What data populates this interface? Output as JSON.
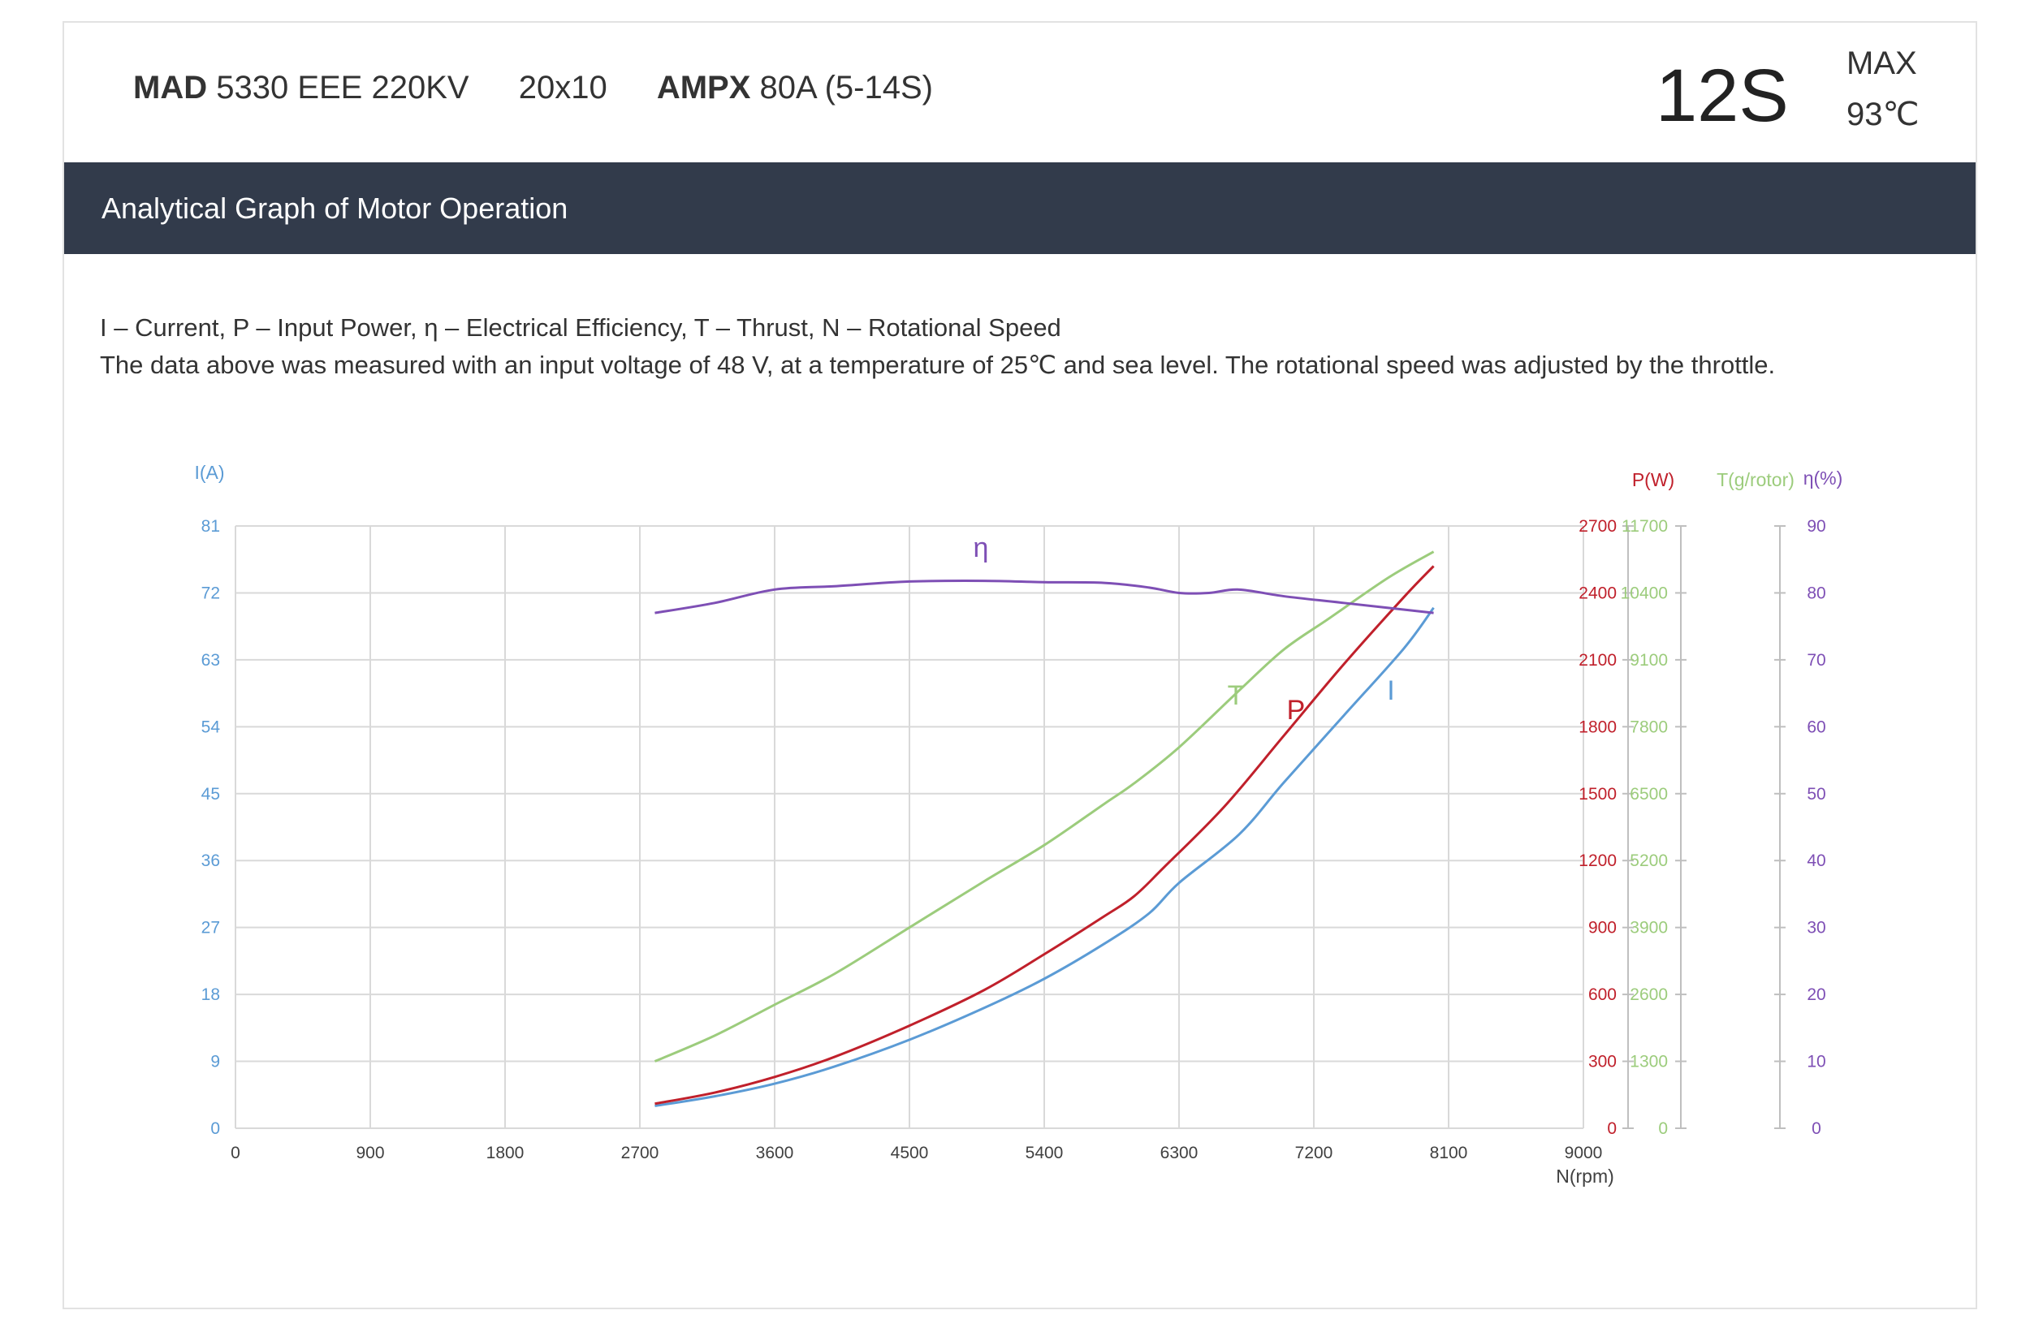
{
  "header": {
    "motor_brand": "MAD",
    "motor_model": "5330 EEE 220KV",
    "prop": "20x10",
    "esc_brand": "AMPX",
    "esc_model": "80A  (5-14S)",
    "cells": "12S",
    "max_label": "MAX",
    "max_temp": "93℃"
  },
  "band": {
    "title": "Analytical Graph of Motor Operation"
  },
  "legend_text": {
    "line1": "I – Current, P – Input Power, η – Electrical Efficiency, T – Thrust,   N – Rotational Speed",
    "line2": "The data above was measured with an input voltage of 48 V, at a temperature of 25℃ and sea level. The rotational speed was adjusted by the throttle."
  },
  "colors": {
    "current": "#5b9bd5",
    "power": "#c0202b",
    "thrust": "#9ccc7c",
    "efficiency": "#7e4fb5",
    "grid": "#d9d9d9"
  },
  "chart_data": {
    "type": "line",
    "xlabel": "N(rpm)",
    "xlim": [
      0,
      9000
    ],
    "x_ticks": [
      "0",
      "900",
      "1800",
      "2700",
      "3600",
      "4500",
      "5400",
      "6300",
      "7200",
      "8100",
      "9000"
    ],
    "axes": {
      "current": {
        "label": "I(A)",
        "lim": [
          0,
          81
        ],
        "ticks": [
          "0",
          "9",
          "18",
          "27",
          "36",
          "45",
          "54",
          "63",
          "72",
          "81"
        ]
      },
      "power": {
        "label": "P(W)",
        "lim": [
          0,
          2700
        ],
        "ticks": [
          "0",
          "300",
          "600",
          "900",
          "1200",
          "1500",
          "1800",
          "2100",
          "2400",
          "2700"
        ]
      },
      "thrust": {
        "label": "T(g/rotor)",
        "lim": [
          0,
          11700
        ],
        "ticks": [
          "0",
          "1300",
          "2600",
          "3900",
          "5200",
          "6500",
          "7800",
          "9100",
          "10400",
          "11700"
        ]
      },
      "efficiency": {
        "label": "η(%)",
        "lim": [
          0,
          90
        ],
        "ticks": [
          "0",
          "10",
          "20",
          "30",
          "40",
          "50",
          "60",
          "70",
          "80",
          "90"
        ]
      }
    },
    "series": [
      {
        "name": "I",
        "axis": "current",
        "x": [
          2800,
          3200,
          3600,
          4000,
          4500,
          5000,
          5400,
          5800,
          6100,
          6300,
          6700,
          7000,
          7400,
          7800,
          8000
        ],
        "values": [
          3.0,
          4.3,
          6.0,
          8.3,
          11.9,
          16.2,
          20.1,
          24.8,
          28.9,
          33.0,
          39.5,
          46.5,
          55.5,
          64.5,
          70.0
        ]
      },
      {
        "name": "P",
        "axis": "power",
        "x": [
          2800,
          3200,
          3600,
          4000,
          4500,
          5000,
          5400,
          5800,
          6000,
          6200,
          6600,
          7000,
          7400,
          7800,
          8000
        ],
        "values": [
          110,
          160,
          230,
          320,
          460,
          620,
          780,
          950,
          1040,
          1170,
          1440,
          1760,
          2080,
          2380,
          2520
        ]
      },
      {
        "name": "T",
        "axis": "thrust",
        "x": [
          2800,
          3200,
          3600,
          4000,
          4500,
          5000,
          5400,
          5800,
          6000,
          6300,
          6700,
          7000,
          7300,
          7700,
          8000
        ],
        "values": [
          1300,
          1800,
          2400,
          3000,
          3900,
          4800,
          5500,
          6300,
          6700,
          7400,
          8500,
          9300,
          9900,
          10700,
          11200
        ]
      },
      {
        "name": "η",
        "axis": "efficiency",
        "x": [
          2800,
          3200,
          3600,
          4000,
          4500,
          5000,
          5400,
          5800,
          6100,
          6300,
          6500,
          6700,
          7000,
          7400,
          8000
        ],
        "values": [
          77,
          78.5,
          80.5,
          81,
          81.7,
          81.8,
          81.6,
          81.5,
          80.8,
          80,
          80,
          80.5,
          79.5,
          78.5,
          77
        ]
      }
    ],
    "annotations": [
      "η",
      "T",
      "P",
      "I"
    ],
    "grid": true
  }
}
